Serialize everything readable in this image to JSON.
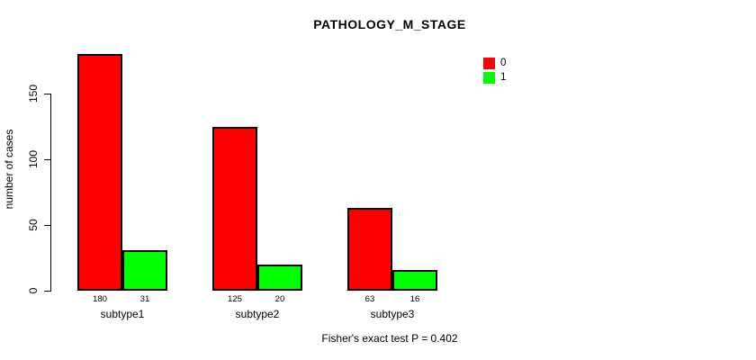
{
  "title": "PATHOLOGY_M_STAGE",
  "footer": "Fisher's exact test P = 0.402",
  "chart_data": {
    "type": "bar",
    "title": "PATHOLOGY_M_STAGE",
    "xlabel": "",
    "ylabel": "number of cases",
    "categories": [
      "subtype1",
      "subtype2",
      "subtype3"
    ],
    "series": [
      {
        "name": "0",
        "color": "#FF0000",
        "values": [
          180,
          125,
          63
        ]
      },
      {
        "name": "1",
        "color": "#00FF00",
        "values": [
          31,
          20,
          16
        ]
      }
    ],
    "value_labels": [
      [
        "180",
        "31"
      ],
      [
        "125",
        "20"
      ],
      [
        "63",
        "16"
      ]
    ],
    "yticks": [
      0,
      50,
      100,
      150
    ],
    "ylim": [
      0,
      190
    ],
    "grid": false,
    "legend_position": "top-right",
    "legend_entries": [
      "0",
      "1"
    ],
    "bar_border_color": "#000000",
    "background_color": "#FFFFFF",
    "annotation": "Fisher's exact test P = 0.402"
  }
}
